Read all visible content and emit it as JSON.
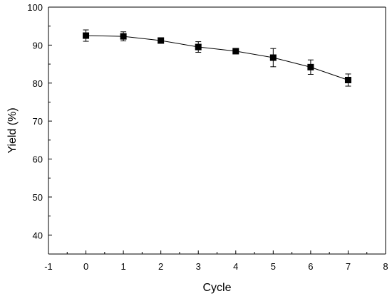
{
  "chart_data": {
    "type": "line",
    "title": "",
    "xlabel": "Cycle",
    "ylabel": "Yield (%)",
    "xlim": [
      -1,
      8
    ],
    "ylim": [
      35,
      100
    ],
    "xticks": [
      -1,
      0,
      1,
      2,
      3,
      4,
      5,
      6,
      7,
      8
    ],
    "yticks": [
      40,
      50,
      60,
      70,
      80,
      90,
      100
    ],
    "grid": false,
    "legend": "none",
    "marker": "square",
    "color": "#000000",
    "series": [
      {
        "x": [
          0,
          1,
          2,
          3,
          4,
          5,
          6,
          7
        ],
        "y": [
          92.5,
          92.3,
          91.2,
          89.5,
          88.4,
          86.7,
          84.2,
          80.8
        ],
        "yerr": [
          1.5,
          1.2,
          0.4,
          1.4,
          0.7,
          2.4,
          1.9,
          1.6
        ]
      }
    ]
  }
}
